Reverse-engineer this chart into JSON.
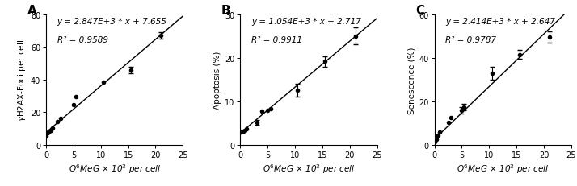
{
  "panels": [
    {
      "label": "A",
      "ylabel": "γH2AX-Foci per cell",
      "eq_line1": "y = 2.847E+3 * x + 7.655",
      "eq_line2": "R² = 0.9589",
      "slope": 2847,
      "intercept": 7.655,
      "xlim": [
        0,
        25
      ],
      "ylim": [
        0,
        80
      ],
      "xticks": [
        0,
        5,
        10,
        15,
        20,
        25
      ],
      "yticks": [
        0,
        20,
        40,
        60,
        80
      ],
      "data_x": [
        0.05,
        0.3,
        0.55,
        0.8,
        1.1,
        2.0,
        2.6,
        5.0,
        5.4,
        10.5,
        15.5,
        21.0
      ],
      "data_y": [
        5.5,
        7.5,
        8.2,
        9.0,
        10.5,
        14.5,
        16.0,
        24.5,
        29.5,
        38.5,
        46.0,
        67.0
      ],
      "data_yerr": [
        0.0,
        0.0,
        0.0,
        0.0,
        0.0,
        0.0,
        0.0,
        0.0,
        0.0,
        0.0,
        2.0,
        2.0
      ]
    },
    {
      "label": "B",
      "ylabel": "Apoptosis (%)",
      "eq_line1": "y = 1.054E+3 * x + 2.717",
      "eq_line2": "R² = 0.9911",
      "slope": 1054,
      "intercept": 2.717,
      "xlim": [
        0,
        25
      ],
      "ylim": [
        0,
        30
      ],
      "xticks": [
        0,
        5,
        10,
        15,
        20,
        25
      ],
      "yticks": [
        0,
        10,
        20,
        30
      ],
      "data_x": [
        0.05,
        0.3,
        0.55,
        0.8,
        1.1,
        3.0,
        4.0,
        5.0,
        5.5,
        10.5,
        15.5,
        21.0
      ],
      "data_y": [
        3.0,
        3.1,
        3.2,
        3.4,
        3.6,
        5.2,
        7.8,
        8.0,
        8.3,
        12.5,
        19.2,
        25.0
      ],
      "data_yerr": [
        0.0,
        0.0,
        0.0,
        0.0,
        0.0,
        0.5,
        0.0,
        0.0,
        0.0,
        1.5,
        1.2,
        2.0
      ]
    },
    {
      "label": "C",
      "ylabel": "Senescence (%)",
      "eq_line1": "y = 2.414E+3 * x + 2.647",
      "eq_line2": "R² = 0.9787",
      "slope": 2414,
      "intercept": 2.647,
      "xlim": [
        0,
        25
      ],
      "ylim": [
        0,
        60
      ],
      "xticks": [
        0,
        5,
        10,
        15,
        20,
        25
      ],
      "yticks": [
        0,
        20,
        40,
        60
      ],
      "data_x": [
        0.05,
        0.3,
        0.6,
        1.0,
        2.5,
        3.0,
        5.0,
        5.4,
        10.5,
        15.5,
        21.0
      ],
      "data_y": [
        1.5,
        2.5,
        4.5,
        6.0,
        10.5,
        12.5,
        16.0,
        17.5,
        33.0,
        41.5,
        49.5
      ],
      "data_yerr": [
        0.0,
        0.0,
        0.0,
        0.0,
        0.0,
        0.0,
        1.5,
        1.5,
        3.0,
        2.0,
        2.5
      ]
    }
  ],
  "marker_color": "black",
  "marker_size": 4.0,
  "line_color": "black",
  "line_width": 1.0,
  "label_fontsize": 7.5,
  "tick_fontsize": 7,
  "eq_fontsize": 7.5,
  "panel_label_fontsize": 11
}
